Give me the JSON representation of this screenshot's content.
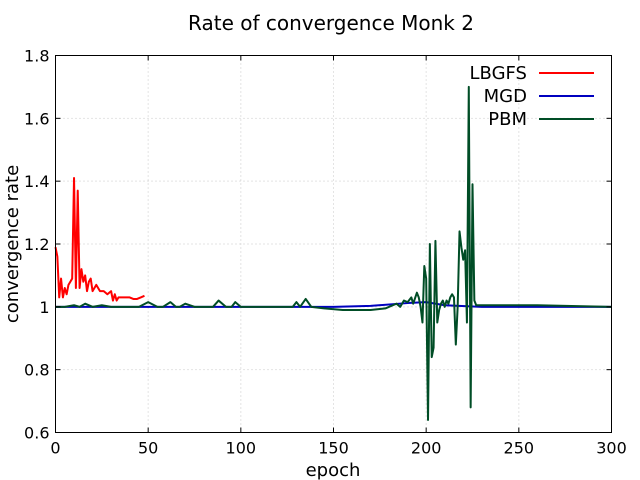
{
  "chart_data": {
    "type": "line",
    "title": "Rate of convergence Monk 2",
    "xlabel": "epoch",
    "ylabel": "convergence rate",
    "xlim": [
      0,
      300
    ],
    "ylim": [
      0.6,
      1.8
    ],
    "xticks": [
      0,
      50,
      100,
      150,
      200,
      250,
      300
    ],
    "xtick_labels": [
      "0",
      "50",
      "100",
      "150",
      "200",
      "250",
      "300"
    ],
    "yticks": [
      0.6,
      0.8,
      1.0,
      1.2,
      1.4,
      1.6,
      1.8
    ],
    "ytick_labels": [
      "0.6",
      "0.8",
      "1",
      "1.2",
      "1.4",
      "1.6",
      "1.8"
    ],
    "grid": true,
    "legend_position": "top-right",
    "series": [
      {
        "name": "LBGFS",
        "color": "#ff0000",
        "x": [
          0,
          1,
          2,
          3,
          4,
          5,
          6,
          7,
          8,
          9,
          10,
          11,
          12,
          13,
          14,
          15,
          16,
          17,
          18,
          19,
          20,
          22,
          24,
          26,
          28,
          30,
          31,
          32,
          33,
          34,
          36,
          38,
          40,
          42,
          44,
          46,
          48
        ],
        "y": [
          1.19,
          1.16,
          1.03,
          1.09,
          1.03,
          1.06,
          1.04,
          1.07,
          1.08,
          1.09,
          1.41,
          1.06,
          1.37,
          1.06,
          1.12,
          1.08,
          1.1,
          1.05,
          1.08,
          1.09,
          1.05,
          1.07,
          1.05,
          1.05,
          1.04,
          1.05,
          1.02,
          1.04,
          1.02,
          1.03,
          1.03,
          1.03,
          1.03,
          1.025,
          1.025,
          1.03,
          1.035
        ]
      },
      {
        "name": "MGD",
        "color": "#0000bf",
        "x": [
          0,
          20,
          50,
          100,
          150,
          170,
          190,
          200,
          210,
          230,
          250,
          300
        ],
        "y": [
          1.0,
          1.0,
          1.0,
          1.0,
          1.0,
          1.003,
          1.012,
          1.015,
          1.005,
          1.0,
          1.0,
          1.0
        ]
      },
      {
        "name": "PBM",
        "color": "#004d26",
        "x": [
          0,
          5,
          10,
          13,
          16,
          20,
          25,
          30,
          40,
          45,
          50,
          55,
          58,
          62,
          65,
          67,
          70,
          75,
          80,
          85,
          88,
          92,
          95,
          97,
          100,
          110,
          120,
          128,
          130,
          132,
          135,
          138,
          145,
          155,
          170,
          178,
          182,
          184,
          186,
          188,
          190,
          192,
          193,
          195,
          196,
          197,
          198,
          199,
          200,
          201,
          202,
          203,
          204,
          205,
          206,
          207,
          208,
          209,
          210,
          211,
          212,
          213,
          214,
          215,
          216,
          217,
          218,
          219,
          220,
          221,
          222,
          223,
          224,
          225,
          226,
          227,
          230,
          240,
          260,
          300
        ],
        "y": [
          1.0,
          1.0,
          1.005,
          1.0,
          1.01,
          1.0,
          1.005,
          1.0,
          1.0,
          1.0,
          1.015,
          1.0,
          1.0,
          1.015,
          1.0,
          1.0,
          1.01,
          1.0,
          1.0,
          1.0,
          1.02,
          1.0,
          1.0,
          1.015,
          1.0,
          1.0,
          1.0,
          1.0,
          1.015,
          1.0,
          1.025,
          1.0,
          0.995,
          0.99,
          0.99,
          0.995,
          1.005,
          1.01,
          1.0,
          1.02,
          1.015,
          1.03,
          1.01,
          1.045,
          1.03,
          1.0,
          0.95,
          1.13,
          1.09,
          0.64,
          1.2,
          0.84,
          0.87,
          1.21,
          0.95,
          0.99,
          1.01,
          1.02,
          1.0,
          1.02,
          1.01,
          1.03,
          1.04,
          1.03,
          0.88,
          1.0,
          1.24,
          1.19,
          1.15,
          1.18,
          0.95,
          1.7,
          0.68,
          1.39,
          1.02,
          1.005,
          1.005,
          1.005,
          1.005,
          1.0
        ]
      }
    ]
  }
}
